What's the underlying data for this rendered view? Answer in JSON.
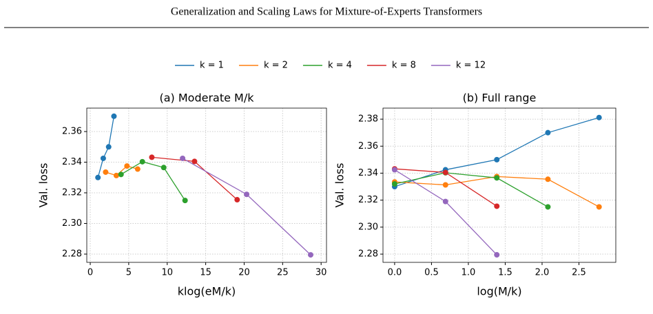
{
  "header": {
    "title": "Generalization and Scaling Laws for Mixture-of-Experts Transformers"
  },
  "chart_data": [
    {
      "type": "line",
      "title": "(a) Moderate M/k",
      "x_label": "klog(eM/k)",
      "y_label": "Val. loss",
      "grid": true,
      "xlim": [
        -0.45,
        30.7
      ],
      "xticks": [
        0,
        5,
        10,
        15,
        20,
        25,
        30
      ],
      "ylim": [
        2.2746,
        2.3753
      ],
      "yticks": [
        2.28,
        2.3,
        2.32,
        2.34,
        2.36
      ],
      "series": [
        {
          "name": "k = 1",
          "color": "#1f77b4",
          "x": [
            1,
            1.69,
            2.39,
            3.08
          ],
          "values": [
            2.33,
            2.3425,
            2.35,
            2.37
          ]
        },
        {
          "name": "k = 2",
          "color": "#ff7f0e",
          "x": [
            2,
            3.39,
            4.77,
            6.16
          ],
          "values": [
            2.3335,
            2.3313,
            2.3375,
            2.3355
          ]
        },
        {
          "name": "k = 4",
          "color": "#2ca02c",
          "x": [
            4,
            6.77,
            9.55,
            12.32
          ],
          "values": [
            2.332,
            2.3403,
            2.3365,
            2.315
          ]
        },
        {
          "name": "k = 8",
          "color": "#d62728",
          "x": [
            8,
            13.55,
            19.09
          ],
          "values": [
            2.3432,
            2.3405,
            2.3155
          ]
        },
        {
          "name": "k = 12",
          "color": "#9467bd",
          "x": [
            12,
            20.32,
            28.64
          ],
          "values": [
            2.3425,
            2.319,
            2.2795
          ]
        }
      ]
    },
    {
      "type": "line",
      "title": "(b) Full range",
      "x_label": "log(M/k)",
      "y_label": "Val. loss",
      "grid": true,
      "xlim": [
        -0.158,
        3.0
      ],
      "xticks": [
        0,
        0.5,
        1,
        1.5,
        2,
        2.5
      ],
      "ylim": [
        2.2739,
        2.3882
      ],
      "yticks": [
        2.28,
        2.3,
        2.32,
        2.34,
        2.36,
        2.38
      ],
      "series": [
        {
          "color": "#1f77b4",
          "x": [
            0,
            0.69,
            1.386,
            2.079,
            2.773
          ],
          "values": [
            2.33,
            2.3425,
            2.35,
            2.37,
            2.3812
          ]
        },
        {
          "color": "#ff7f0e",
          "x": [
            0,
            0.69,
            1.386,
            2.079,
            2.773
          ],
          "values": [
            2.3335,
            2.3313,
            2.3375,
            2.3355,
            2.315
          ]
        },
        {
          "color": "#2ca02c",
          "x": [
            0,
            0.69,
            1.386,
            2.079
          ],
          "values": [
            2.332,
            2.3403,
            2.3365,
            2.315
          ]
        },
        {
          "color": "#d62728",
          "x": [
            0,
            0.69,
            1.386
          ],
          "values": [
            2.3432,
            2.3405,
            2.3155
          ]
        },
        {
          "color": "#9467bd",
          "x": [
            0,
            0.69,
            1.386
          ],
          "values": [
            2.3425,
            2.319,
            2.2795
          ]
        }
      ]
    }
  ]
}
